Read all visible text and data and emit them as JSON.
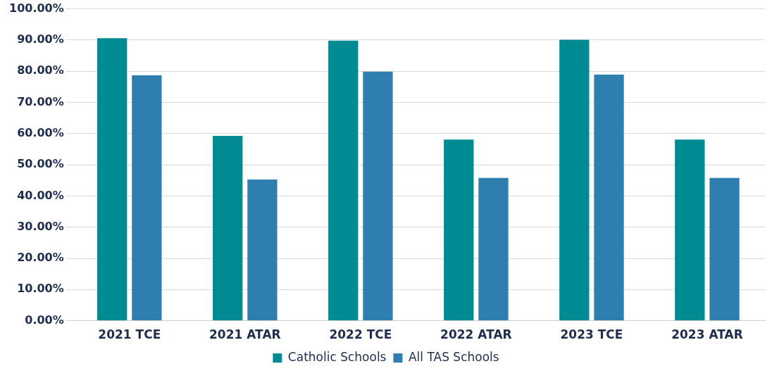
{
  "chart_data": {
    "type": "bar",
    "categories": [
      "2021 TCE",
      "2021 ATAR",
      "2022 TCE",
      "2022 ATAR",
      "2023 TCE",
      "2023 ATAR"
    ],
    "series": [
      {
        "name": "Catholic Schools",
        "color": "#008a92",
        "values": [
          90.6,
          59.3,
          89.8,
          58.1,
          90.1,
          58.1
        ]
      },
      {
        "name": "All TAS Schools",
        "color": "#2e7fb0",
        "values": [
          78.7,
          45.3,
          79.9,
          45.8,
          78.9,
          45.8
        ]
      }
    ],
    "ylim": [
      0,
      100
    ],
    "yticks": [
      {
        "value": 0,
        "label": "0.00%"
      },
      {
        "value": 10,
        "label": "10.00%"
      },
      {
        "value": 20,
        "label": "20.00%"
      },
      {
        "value": 30,
        "label": "30.00%"
      },
      {
        "value": 40,
        "label": "40.00%"
      },
      {
        "value": 50,
        "label": "50.00%"
      },
      {
        "value": 60,
        "label": "60.00%"
      },
      {
        "value": 70,
        "label": "70.00%"
      },
      {
        "value": 80,
        "label": "80.00%"
      },
      {
        "value": 90,
        "label": "90.00%"
      },
      {
        "value": 100,
        "label": "100.00%"
      }
    ],
    "grid": "y",
    "legend": "bottom"
  }
}
